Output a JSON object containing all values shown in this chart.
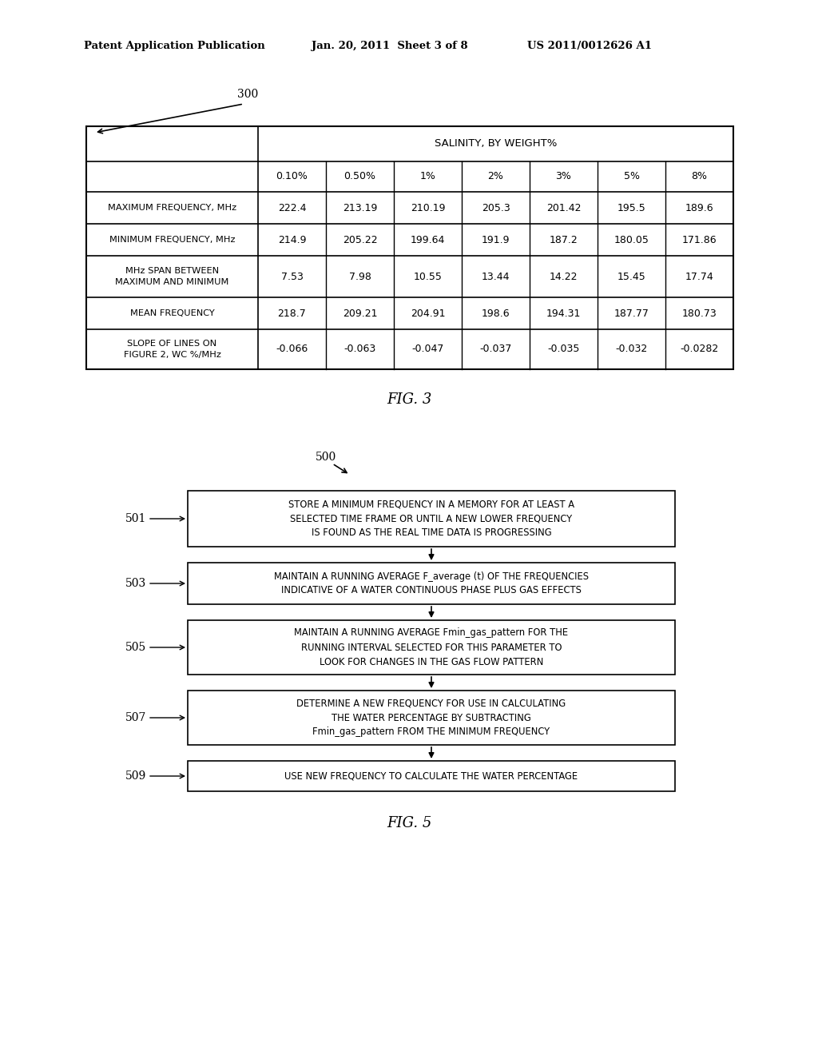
{
  "background_color": "#ffffff",
  "header_left": "Patent Application Publication",
  "header_mid": "Jan. 20, 2011  Sheet 3 of 8",
  "header_right": "US 2011/0012626 A1",
  "fig3_label": "FIG. 3",
  "fig5_label": "FIG. 5",
  "table_ref": "300",
  "flow_ref": "500",
  "table": {
    "col_header_main": "SALINITY, BY WEIGHT%",
    "col_headers": [
      "0.10%",
      "0.50%",
      "1%",
      "2%",
      "3%",
      "5%",
      "8%"
    ],
    "rows": [
      {
        "label": "MAXIMUM FREQUENCY, MHz",
        "values": [
          "222.4",
          "213.19",
          "210.19",
          "205.3",
          "201.42",
          "195.5",
          "189.6"
        ]
      },
      {
        "label": "MINIMUM FREQUENCY, MHz",
        "values": [
          "214.9",
          "205.22",
          "199.64",
          "191.9",
          "187.2",
          "180.05",
          "171.86"
        ]
      },
      {
        "label": "MHz SPAN BETWEEN\nMAXIMUM AND MINIMUM",
        "values": [
          "7.53",
          "7.98",
          "10.55",
          "13.44",
          "14.22",
          "15.45",
          "17.74"
        ]
      },
      {
        "label": "MEAN FREQUENCY",
        "values": [
          "218.7",
          "209.21",
          "204.91",
          "198.6",
          "194.31",
          "187.77",
          "180.73"
        ]
      },
      {
        "label": "SLOPE OF LINES ON\nFIGURE 2, WC %/MHz",
        "values": [
          "-0.066",
          "-0.063",
          "-0.047",
          "-0.037",
          "-0.035",
          "-0.032",
          "-0.0282"
        ]
      }
    ]
  },
  "flowchart": {
    "steps": [
      {
        "id": "501",
        "text": "STORE A MINIMUM FREQUENCY IN A MEMORY FOR AT LEAST A\nSELECTED TIME FRAME OR UNTIL A NEW LOWER FREQUENCY\nIS FOUND AS THE REAL TIME DATA IS PROGRESSING"
      },
      {
        "id": "503",
        "text": "MAINTAIN A RUNNING AVERAGE F_average (t) OF THE FREQUENCIES\nINDICATIVE OF A WATER CONTINUOUS PHASE PLUS GAS EFFECTS"
      },
      {
        "id": "505",
        "text": "MAINTAIN A RUNNING AVERAGE Fmin_gas_pattern FOR THE\nRUNNING INTERVAL SELECTED FOR THIS PARAMETER TO\nLOOK FOR CHANGES IN THE GAS FLOW PATTERN"
      },
      {
        "id": "507",
        "text": "DETERMINE A NEW FREQUENCY FOR USE IN CALCULATING\nTHE WATER PERCENTAGE BY SUBTRACTING\nFmin_gas_pattern FROM THE MINIMUM FREQUENCY"
      },
      {
        "id": "509",
        "text": "USE NEW FREQUENCY TO CALCULATE THE WATER PERCENTAGE"
      }
    ]
  }
}
